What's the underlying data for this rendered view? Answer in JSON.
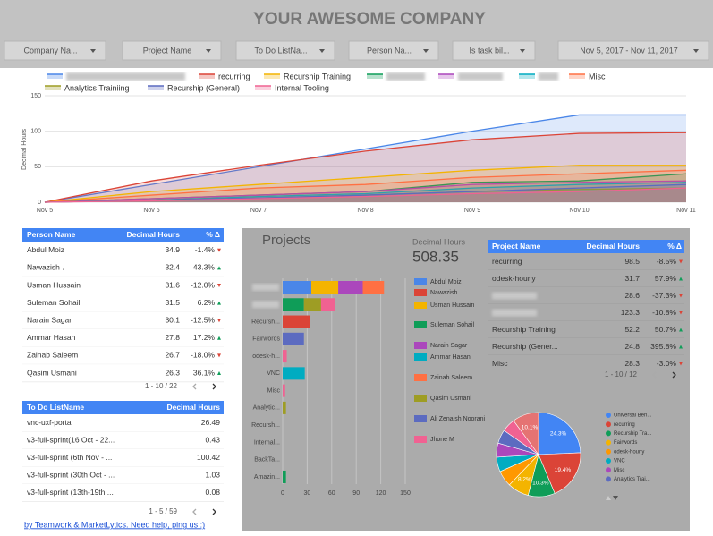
{
  "header": {
    "title": "YOUR AWESOME COMPANY"
  },
  "filters": [
    "Company Na...",
    "Project Name",
    "To Do ListNa...",
    "Person Na...",
    "Is task bil...",
    "Nov 5, 2017 - Nov 11, 2017"
  ],
  "chart_data": [
    {
      "type": "area",
      "y_label": "Decimal Hours",
      "categories": [
        "Nov 5",
        "Nov 6",
        "Nov 7",
        "Nov 8",
        "Nov 9",
        "Nov 10",
        "Nov 11"
      ],
      "ylim": [
        0,
        150
      ],
      "yticks": [
        0,
        50,
        100,
        150
      ],
      "grid": true,
      "series": [
        {
          "name": null,
          "color": "#4a86e8",
          "values": [
            0,
            25,
            50,
            75,
            100,
            123,
            123
          ]
        },
        {
          "name": "recurring",
          "color": "#db4437",
          "values": [
            0,
            30,
            52,
            72,
            88,
            97,
            98
          ]
        },
        {
          "name": "Recurship Training",
          "color": "#f4b400",
          "values": [
            0,
            15,
            25,
            35,
            45,
            52,
            52
          ]
        },
        {
          "name": null,
          "color": "#0f9d58",
          "values": [
            0,
            5,
            10,
            15,
            28,
            30,
            40
          ]
        },
        {
          "name": null,
          "color": "#ab47bc",
          "values": [
            0,
            5,
            10,
            15,
            25,
            28,
            30
          ]
        },
        {
          "name": null,
          "color": "#00acc1",
          "values": [
            0,
            3,
            8,
            12,
            20,
            25,
            28
          ]
        },
        {
          "name": "Misc",
          "color": "#ff7043",
          "values": [
            0,
            10,
            20,
            25,
            35,
            40,
            45
          ]
        },
        {
          "name": "Analytics Trainiing",
          "color": "#9e9d24",
          "values": [
            0,
            3,
            6,
            10,
            15,
            18,
            20
          ]
        },
        {
          "name": "Recurship (General)",
          "color": "#5c6bc0",
          "values": [
            0,
            3,
            6,
            10,
            15,
            20,
            25
          ]
        },
        {
          "name": "Internal Tooling",
          "color": "#f06292",
          "values": [
            0,
            2,
            5,
            8,
            12,
            15,
            20
          ]
        }
      ]
    },
    {
      "type": "bar",
      "orientation": "horizontal",
      "stacked": true,
      "title": "Projects",
      "categories": [
        null,
        null,
        "Recursh...",
        "Fairwords",
        "odesk-h...",
        "VNC",
        "Misc",
        "Analytic...",
        "Recursh...",
        "Internal...",
        "BackTa...",
        "Amazin..."
      ],
      "xlim": [
        0,
        150
      ],
      "xticks": [
        0,
        30,
        60,
        90,
        120,
        150
      ],
      "grid": true,
      "series": [
        {
          "name": "Abdul Moiz",
          "color": "#4a86e8",
          "values": [
            35,
            null,
            null,
            null,
            null,
            null,
            null,
            null,
            null,
            null,
            null,
            null
          ]
        },
        {
          "name": "Nawazish.",
          "color": "#db4437",
          "values": [
            null,
            null,
            33,
            null,
            null,
            null,
            null,
            null,
            null,
            null,
            null,
            null
          ]
        },
        {
          "name": "Usman Hussain",
          "color": "#f4b400",
          "values": [
            33,
            null,
            null,
            null,
            null,
            null,
            null,
            null,
            null,
            null,
            null,
            null
          ]
        },
        {
          "name": "Suleman Sohail",
          "color": "#0f9d58",
          "values": [
            null,
            26,
            null,
            null,
            null,
            null,
            null,
            null,
            null,
            null,
            null,
            4
          ]
        },
        {
          "name": "Narain Sagar",
          "color": "#ab47bc",
          "values": [
            30,
            null,
            null,
            null,
            null,
            null,
            null,
            null,
            null,
            null,
            null,
            null
          ]
        },
        {
          "name": "Ammar Hasan",
          "color": "#00acc1",
          "values": [
            null,
            null,
            null,
            null,
            null,
            27,
            null,
            null,
            null,
            null,
            null,
            null
          ]
        },
        {
          "name": "Zainab Saleem",
          "color": "#ff7043",
          "values": [
            26,
            null,
            null,
            null,
            null,
            null,
            null,
            null,
            null,
            null,
            null,
            null
          ]
        },
        {
          "name": "Qasim Usmani",
          "color": "#9e9d24",
          "values": [
            null,
            21,
            null,
            null,
            null,
            null,
            null,
            4,
            null,
            null,
            null,
            null
          ]
        },
        {
          "name": "Ali Zenaish Noorani",
          "color": "#5c6bc0",
          "values": [
            null,
            null,
            null,
            26,
            null,
            null,
            null,
            null,
            null,
            null,
            null,
            null
          ]
        },
        {
          "name": "Jhone M",
          "color": "#f06292",
          "values": [
            null,
            17,
            null,
            null,
            5,
            null,
            3,
            null,
            null,
            null,
            null,
            null
          ]
        }
      ]
    },
    {
      "type": "pie",
      "categories": [
        "Universal Ben...",
        "recurring",
        "Recurship Tra...",
        "Fairwords",
        "odesk-hourly",
        "VNC",
        "Misc",
        "Analytics Trai...",
        null,
        null
      ],
      "values": [
        24.3,
        19.4,
        10.3,
        8.2,
        6.2,
        5.6,
        5.4,
        5.3,
        5.2,
        10.1
      ],
      "value_labels": [
        "24.3%",
        "19.4%",
        "10.3%",
        "8.2%",
        null,
        null,
        null,
        null,
        null,
        "10.1%"
      ],
      "colors": [
        "#4285f4",
        "#db4437",
        "#0f9d58",
        "#f4b400",
        "#ff9800",
        "#00acc1",
        "#ab47bc",
        "#5c6bc0",
        "#f06292",
        "#e57373"
      ]
    }
  ],
  "person_table": {
    "columns": [
      "Person Name",
      "Decimal Hours",
      "% Δ"
    ],
    "rows": [
      [
        "Abdul Moiz",
        34.9,
        "-1.4%"
      ],
      [
        "Nawazish .",
        32.4,
        "43.3%"
      ],
      [
        "Usman Hussain",
        31.6,
        "-12.0%"
      ],
      [
        "Suleman Sohail",
        31.5,
        "6.2%"
      ],
      [
        "Narain Sagar",
        30.1,
        "-12.5%"
      ],
      [
        "Ammar Hasan",
        27.8,
        "17.2%"
      ],
      [
        "Zainab Saleem",
        26.7,
        "-18.0%"
      ],
      [
        "Qasim Usmani",
        26.3,
        "36.1%"
      ]
    ],
    "pagination": "1 - 10 / 22"
  },
  "todo_table": {
    "columns": [
      "To Do ListName",
      "Decimal Hours"
    ],
    "rows": [
      [
        "vnc-uxf-portal",
        26.49
      ],
      [
        "v3-full-sprint(16 Oct - 22...",
        0.43
      ],
      [
        "v3-full-sprint (6th Nov - ...",
        100.42
      ],
      [
        "v3-full-sprint (30th Oct - ...",
        1.03
      ],
      [
        "v3-full-sprint (13th-19th ...",
        0.08
      ]
    ],
    "pagination": "1 - 5 / 59"
  },
  "project_table": {
    "columns": [
      "Project Name",
      "Decimal Hours",
      "% Δ"
    ],
    "rows": [
      [
        "recurring",
        98.5,
        "-8.5%"
      ],
      [
        "odesk-hourly",
        31.7,
        "57.9%"
      ],
      [
        null,
        28.6,
        "-37.3%"
      ],
      [
        null,
        123.3,
        "-10.8%"
      ],
      [
        "Recurship Training",
        52.2,
        "50.7%"
      ],
      [
        "Recurship (Gener...",
        24.8,
        "395.8%"
      ],
      [
        "Misc",
        28.3,
        "-3.0%"
      ]
    ],
    "pagination": "1 - 10 / 12"
  },
  "scorecard": {
    "label": "Decimal Hours",
    "value": 508.35
  },
  "footer": {
    "link": "by Teamwork & MarketLytics. Need help, ping us :)"
  }
}
